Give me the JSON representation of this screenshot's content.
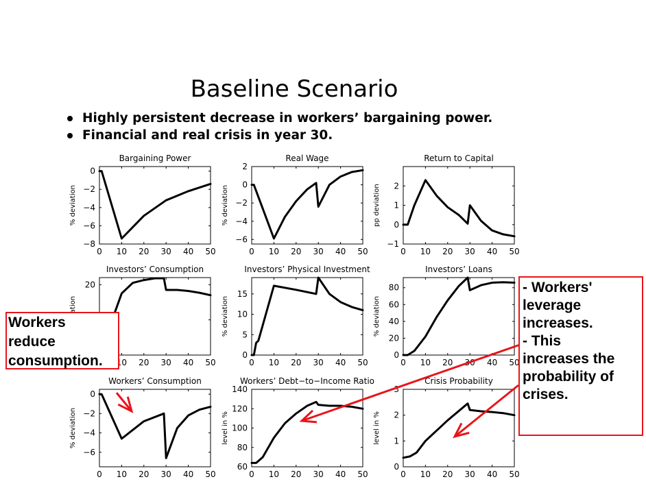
{
  "title": "Baseline Scenario",
  "bullets": [
    "Highly persistent decrease in workers’ bargaining power.",
    "Financial and real crisis in year 30."
  ],
  "callouts": {
    "left": [
      "Workers",
      "reduce",
      "consumption."
    ],
    "right": [
      "- Workers'",
      "leverage",
      "increases.",
      "- This",
      "increases the",
      "probability of",
      "crises."
    ]
  },
  "colors": {
    "line": "#000000",
    "callout_border": "#e8141a",
    "arrow": "#e8141a"
  },
  "chart_data": [
    {
      "type": "line",
      "title": "Bargaining Power",
      "ylabel": "% deviation",
      "xlim": [
        0,
        50
      ],
      "ylim": [
        -8,
        0.5
      ],
      "xticks": [
        0,
        10,
        20,
        30,
        40,
        50
      ],
      "yticks": [
        0,
        -2,
        -4,
        -6,
        -8
      ],
      "x": [
        0,
        1,
        10,
        20,
        30,
        40,
        50
      ],
      "y": [
        0,
        0,
        -7.4,
        -4.9,
        -3.2,
        -2.2,
        -1.4
      ]
    },
    {
      "type": "line",
      "title": "Real Wage",
      "ylabel": "% deviation",
      "xlim": [
        0,
        50
      ],
      "ylim": [
        -6.5,
        2
      ],
      "xticks": [
        0,
        10,
        20,
        30,
        40,
        50
      ],
      "yticks": [
        2,
        0,
        -2,
        -4,
        -6
      ],
      "x": [
        0,
        1,
        10,
        15,
        20,
        25,
        29,
        30,
        35,
        40,
        45,
        50
      ],
      "y": [
        0,
        0,
        -5.9,
        -3.5,
        -1.8,
        -0.5,
        0.2,
        -2.4,
        0,
        0.9,
        1.4,
        1.6
      ]
    },
    {
      "type": "line",
      "title": "Return to Capital",
      "ylabel": "pp deviation",
      "xlim": [
        0,
        50
      ],
      "ylim": [
        -1,
        3
      ],
      "xticks": [
        0,
        10,
        20,
        30,
        40,
        50
      ],
      "yticks": [
        2,
        1,
        0,
        -1
      ],
      "x": [
        0,
        2,
        5,
        10,
        15,
        20,
        25,
        29,
        30,
        35,
        40,
        45,
        50
      ],
      "y": [
        0,
        0,
        1,
        2.3,
        1.5,
        0.9,
        0.5,
        0.05,
        1,
        0.2,
        -0.3,
        -0.5,
        -0.6
      ]
    },
    {
      "type": "line",
      "title": "Investors’ Consumption",
      "ylabel": "% deviation",
      "xlim": [
        0,
        50
      ],
      "ylim": [
        0,
        22
      ],
      "xticks": [
        0,
        10,
        20,
        30,
        40,
        50
      ],
      "yticks": [
        20,
        10,
        0
      ],
      "x": [
        0,
        10,
        15,
        20,
        25,
        29,
        30,
        35,
        40,
        45,
        50
      ],
      "y": [
        0,
        17.5,
        20.5,
        21.3,
        21.8,
        21.8,
        18.5,
        18.5,
        18.2,
        17.7,
        17
      ]
    },
    {
      "type": "line",
      "title": "Investors’ Physical Investment",
      "ylabel": "% deviation",
      "xlim": [
        0,
        50
      ],
      "ylim": [
        0,
        19
      ],
      "xticks": [
        0,
        10,
        20,
        30,
        40,
        50
      ],
      "yticks": [
        15,
        10,
        5,
        0
      ],
      "x": [
        0,
        1,
        2,
        3,
        10,
        20,
        29,
        30,
        35,
        40,
        45,
        50
      ],
      "y": [
        0,
        0,
        3,
        3.5,
        17,
        16,
        15,
        19,
        15,
        13,
        11.8,
        11
      ]
    },
    {
      "type": "line",
      "title": "Investors’ Loans",
      "ylabel": "% deviation",
      "xlim": [
        0,
        50
      ],
      "ylim": [
        0,
        92
      ],
      "xticks": [
        0,
        10,
        20,
        30,
        40,
        50
      ],
      "yticks": [
        80,
        60,
        40,
        20,
        0
      ],
      "x": [
        0,
        2,
        5,
        10,
        15,
        20,
        25,
        29,
        30,
        35,
        40,
        45,
        50
      ],
      "y": [
        0,
        0,
        5,
        22,
        45,
        65,
        82,
        92,
        77,
        83,
        86,
        86.5,
        86
      ]
    },
    {
      "type": "line",
      "title": "Workers’ Consumption",
      "ylabel": "% deviation",
      "xlim": [
        0,
        50
      ],
      "ylim": [
        -7.5,
        0.5
      ],
      "xticks": [
        0,
        10,
        20,
        30,
        40,
        50
      ],
      "yticks": [
        0,
        -2,
        -4,
        -6
      ],
      "x": [
        0,
        1,
        10,
        20,
        29,
        30,
        35,
        40,
        45,
        50
      ],
      "y": [
        0,
        0,
        -4.6,
        -2.8,
        -2,
        -6.6,
        -3.5,
        -2.2,
        -1.6,
        -1.3
      ]
    },
    {
      "type": "line",
      "title": "Workers’ Debt−to−Income Ratio",
      "ylabel": "level in %",
      "xlim": [
        0,
        50
      ],
      "ylim": [
        60,
        140
      ],
      "xticks": [
        0,
        10,
        20,
        30,
        40,
        50
      ],
      "yticks": [
        140,
        120,
        100,
        80,
        60
      ],
      "x": [
        0,
        2,
        5,
        10,
        15,
        20,
        25,
        29,
        30,
        35,
        40,
        45,
        50
      ],
      "y": [
        64,
        64,
        70,
        90,
        105,
        115,
        123,
        127,
        124,
        123,
        123,
        122,
        120
      ]
    },
    {
      "type": "line",
      "title": "Crisis Probability",
      "ylabel": "level in %",
      "xlim": [
        0,
        50
      ],
      "ylim": [
        0,
        3
      ],
      "xticks": [
        0,
        10,
        20,
        30,
        40,
        50
      ],
      "yticks": [
        3,
        2,
        1,
        0
      ],
      "x": [
        0,
        3,
        6,
        10,
        20,
        29,
        30,
        35,
        40,
        45,
        50
      ],
      "y": [
        0.35,
        0.4,
        0.55,
        1,
        1.8,
        2.45,
        2.2,
        2.15,
        2.12,
        2.08,
        2.0
      ]
    }
  ]
}
